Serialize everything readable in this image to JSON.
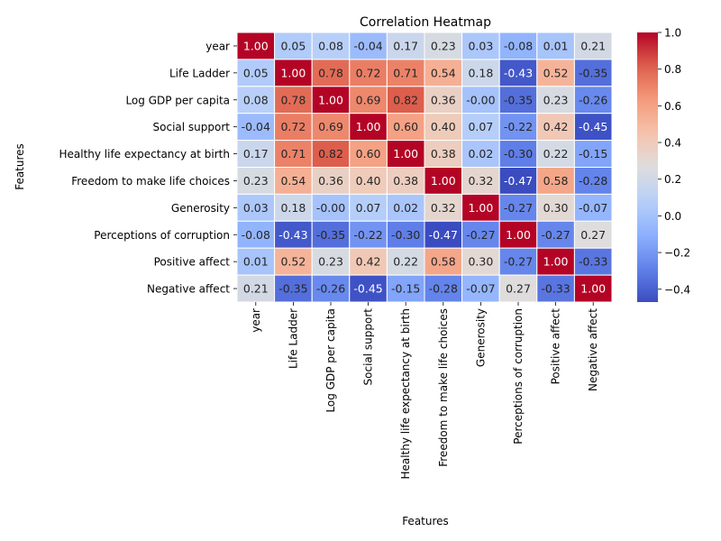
{
  "chart_data": {
    "type": "heatmap",
    "title": "Correlation Heatmap",
    "xlabel": "Features",
    "ylabel": "Features",
    "categories": [
      "year",
      "Life Ladder",
      "Log GDP per capita",
      "Social support",
      "Healthy life expectancy at birth",
      "Freedom to make life choices",
      "Generosity",
      "Perceptions of corruption",
      "Positive affect",
      "Negative affect"
    ],
    "cell_labels": [
      [
        "1.00",
        "0.05",
        "0.08",
        "-0.04",
        "0.17",
        "0.23",
        "0.03",
        "-0.08",
        "0.01",
        "0.21"
      ],
      [
        "0.05",
        "1.00",
        "0.78",
        "0.72",
        "0.71",
        "0.54",
        "0.18",
        "-0.43",
        "0.52",
        "-0.35"
      ],
      [
        "0.08",
        "0.78",
        "1.00",
        "0.69",
        "0.82",
        "0.36",
        "-0.00",
        "-0.35",
        "0.23",
        "-0.26"
      ],
      [
        "-0.04",
        "0.72",
        "0.69",
        "1.00",
        "0.60",
        "0.40",
        "0.07",
        "-0.22",
        "0.42",
        "-0.45"
      ],
      [
        "0.17",
        "0.71",
        "0.82",
        "0.60",
        "1.00",
        "0.38",
        "0.02",
        "-0.30",
        "0.22",
        "-0.15"
      ],
      [
        "0.23",
        "0.54",
        "0.36",
        "0.40",
        "0.38",
        "1.00",
        "0.32",
        "-0.47",
        "0.58",
        "-0.28"
      ],
      [
        "0.03",
        "0.18",
        "-0.00",
        "0.07",
        "0.02",
        "0.32",
        "1.00",
        "-0.27",
        "0.30",
        "-0.07"
      ],
      [
        "-0.08",
        "-0.43",
        "-0.35",
        "-0.22",
        "-0.30",
        "-0.47",
        "-0.27",
        "1.00",
        "-0.27",
        "0.27"
      ],
      [
        "0.01",
        "0.52",
        "0.23",
        "0.42",
        "0.22",
        "0.58",
        "0.30",
        "-0.27",
        "1.00",
        "-0.33"
      ],
      [
        "0.21",
        "-0.35",
        "-0.26",
        "-0.45",
        "-0.15",
        "-0.28",
        "-0.07",
        "0.27",
        "-0.33",
        "1.00"
      ]
    ],
    "colorbar": {
      "min": -0.47,
      "max": 1.0,
      "ticks": [
        -0.4,
        -0.2,
        0.0,
        0.2,
        0.4,
        0.6,
        0.8,
        1.0
      ],
      "tick_labels": [
        "−0.4",
        "−0.2",
        "0.0",
        "0.2",
        "0.4",
        "0.6",
        "0.8",
        "1.0"
      ],
      "colormap": "coolwarm"
    },
    "grid": true
  }
}
